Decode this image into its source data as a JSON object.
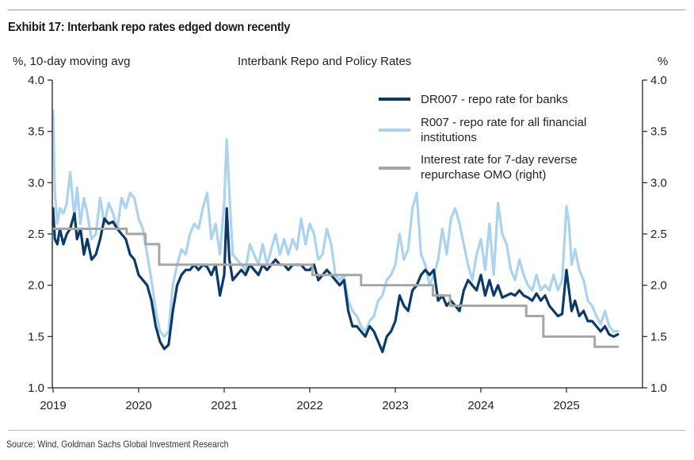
{
  "exhibit": {
    "title": "Exhibit 17: Interbank repo rates edged down recently",
    "source": "Source: Wind, Goldman Sachs Global Investment Research"
  },
  "chart_data": {
    "type": "line",
    "title": "Interbank Repo and Policy Rates",
    "left_axis_label": "%, 10-day moving avg",
    "right_axis_label": "%",
    "ylim": [
      1.0,
      4.0
    ],
    "yticks": [
      1.0,
      1.5,
      2.0,
      2.5,
      3.0,
      3.5,
      4.0
    ],
    "ytick_labels": [
      "1.0",
      "1.5",
      "2.0",
      "2.5",
      "3.0",
      "3.5",
      "4.0"
    ],
    "xlim": [
      2019.0,
      2026.3
    ],
    "xticks": [
      2019,
      2020,
      2021,
      2022,
      2023,
      2024,
      2025
    ],
    "xtick_labels": [
      "2019",
      "2020",
      "2021",
      "2022",
      "2023",
      "2024",
      "2025"
    ],
    "grid": false,
    "legend_position": "top-right",
    "series": [
      {
        "name": "R007 - repo rate for all financial institutions",
        "legend_lines": [
          "R007 - repo rate for all financial",
          "institutions"
        ],
        "color": "#a9d3ef",
        "axis": "left",
        "x": [
          2019.0,
          2019.02,
          2019.05,
          2019.08,
          2019.12,
          2019.16,
          2019.2,
          2019.25,
          2019.28,
          2019.32,
          2019.36,
          2019.4,
          2019.45,
          2019.5,
          2019.55,
          2019.6,
          2019.65,
          2019.7,
          2019.75,
          2019.8,
          2019.85,
          2019.9,
          2019.95,
          2020.0,
          2020.05,
          2020.1,
          2020.15,
          2020.2,
          2020.25,
          2020.3,
          2020.35,
          2020.4,
          2020.45,
          2020.5,
          2020.55,
          2020.6,
          2020.65,
          2020.7,
          2020.75,
          2020.8,
          2020.85,
          2020.9,
          2020.95,
          2021.0,
          2021.03,
          2021.06,
          2021.1,
          2021.15,
          2021.2,
          2021.25,
          2021.3,
          2021.35,
          2021.4,
          2021.45,
          2021.5,
          2021.55,
          2021.6,
          2021.65,
          2021.7,
          2021.75,
          2021.8,
          2021.85,
          2021.9,
          2021.95,
          2022.0,
          2022.05,
          2022.1,
          2022.15,
          2022.2,
          2022.25,
          2022.3,
          2022.35,
          2022.4,
          2022.45,
          2022.5,
          2022.55,
          2022.6,
          2022.65,
          2022.7,
          2022.75,
          2022.8,
          2022.85,
          2022.9,
          2022.95,
          2023.0,
          2023.05,
          2023.1,
          2023.15,
          2023.2,
          2023.25,
          2023.3,
          2023.35,
          2023.4,
          2023.45,
          2023.5,
          2023.55,
          2023.6,
          2023.65,
          2023.7,
          2023.75,
          2023.8,
          2023.85,
          2023.9,
          2023.95,
          2024.0,
          2024.05,
          2024.1,
          2024.15,
          2024.2,
          2024.25,
          2024.3,
          2024.35,
          2024.4,
          2024.45,
          2024.5,
          2024.55,
          2024.6,
          2024.65,
          2024.7,
          2024.75,
          2024.8,
          2024.85,
          2024.9,
          2024.95,
          2025.0,
          2025.03,
          2025.06,
          2025.1,
          2025.15,
          2025.2,
          2025.25,
          2025.3,
          2025.35,
          2025.4,
          2025.45,
          2025.5,
          2025.55,
          2025.6
        ],
        "values": [
          3.7,
          2.9,
          2.6,
          2.75,
          2.7,
          2.8,
          3.1,
          2.65,
          2.95,
          2.6,
          2.85,
          2.7,
          2.45,
          2.5,
          2.85,
          2.6,
          2.8,
          2.7,
          2.55,
          2.85,
          2.75,
          2.9,
          2.85,
          2.65,
          2.55,
          2.3,
          2.05,
          1.75,
          1.55,
          1.5,
          1.55,
          2.0,
          2.2,
          2.35,
          2.3,
          2.5,
          2.6,
          2.55,
          2.75,
          2.9,
          2.45,
          2.6,
          2.3,
          2.8,
          3.42,
          2.9,
          2.3,
          2.25,
          2.2,
          2.15,
          2.4,
          2.3,
          2.2,
          2.4,
          2.2,
          2.35,
          2.5,
          2.3,
          2.45,
          2.3,
          2.45,
          2.35,
          2.65,
          2.4,
          2.6,
          2.5,
          2.25,
          2.3,
          2.55,
          2.4,
          2.1,
          2.05,
          2.1,
          1.85,
          1.75,
          1.7,
          1.6,
          1.55,
          1.65,
          1.7,
          1.85,
          1.9,
          2.05,
          2.1,
          2.2,
          2.5,
          2.25,
          2.35,
          2.75,
          2.9,
          2.3,
          2.2,
          2.0,
          2.1,
          2.25,
          2.55,
          2.3,
          2.65,
          2.75,
          2.6,
          2.4,
          2.2,
          2.05,
          2.3,
          2.45,
          2.15,
          2.6,
          2.1,
          2.8,
          2.5,
          2.4,
          2.15,
          2.05,
          2.25,
          2.1,
          2.0,
          1.95,
          2.1,
          1.95,
          2.0,
          1.95,
          2.1,
          1.95,
          2.05,
          2.77,
          2.6,
          2.2,
          2.35,
          2.15,
          2.05,
          1.85,
          1.8,
          1.7,
          1.62,
          1.75,
          1.6,
          1.55,
          1.55
        ]
      },
      {
        "name": "DR007 - repo rate for banks",
        "legend_lines": [
          "DR007 - repo rate for banks"
        ],
        "color": "#0b3a66",
        "axis": "left",
        "x": [
          2019.0,
          2019.02,
          2019.05,
          2019.08,
          2019.12,
          2019.16,
          2019.2,
          2019.25,
          2019.28,
          2019.32,
          2019.36,
          2019.4,
          2019.45,
          2019.5,
          2019.55,
          2019.6,
          2019.65,
          2019.7,
          2019.75,
          2019.8,
          2019.85,
          2019.9,
          2019.95,
          2020.0,
          2020.05,
          2020.1,
          2020.15,
          2020.2,
          2020.25,
          2020.3,
          2020.35,
          2020.4,
          2020.45,
          2020.5,
          2020.55,
          2020.6,
          2020.65,
          2020.7,
          2020.75,
          2020.8,
          2020.85,
          2020.9,
          2020.95,
          2021.0,
          2021.03,
          2021.06,
          2021.1,
          2021.15,
          2021.2,
          2021.25,
          2021.3,
          2021.35,
          2021.4,
          2021.45,
          2021.5,
          2021.55,
          2021.6,
          2021.65,
          2021.7,
          2021.75,
          2021.8,
          2021.85,
          2021.9,
          2021.95,
          2022.0,
          2022.05,
          2022.1,
          2022.15,
          2022.2,
          2022.25,
          2022.3,
          2022.35,
          2022.4,
          2022.45,
          2022.5,
          2022.55,
          2022.6,
          2022.65,
          2022.7,
          2022.75,
          2022.8,
          2022.85,
          2022.9,
          2022.95,
          2023.0,
          2023.05,
          2023.1,
          2023.15,
          2023.2,
          2023.25,
          2023.3,
          2023.35,
          2023.4,
          2023.45,
          2023.5,
          2023.55,
          2023.6,
          2023.65,
          2023.7,
          2023.75,
          2023.8,
          2023.85,
          2023.9,
          2023.95,
          2024.0,
          2024.05,
          2024.1,
          2024.15,
          2024.2,
          2024.25,
          2024.3,
          2024.35,
          2024.4,
          2024.45,
          2024.5,
          2024.55,
          2024.6,
          2024.65,
          2024.7,
          2024.75,
          2024.8,
          2024.85,
          2024.9,
          2024.95,
          2025.0,
          2025.03,
          2025.06,
          2025.1,
          2025.15,
          2025.2,
          2025.25,
          2025.3,
          2025.35,
          2025.4,
          2025.45,
          2025.5,
          2025.55,
          2025.6
        ],
        "values": [
          2.75,
          2.45,
          2.4,
          2.55,
          2.4,
          2.5,
          2.55,
          2.7,
          2.45,
          2.55,
          2.3,
          2.45,
          2.25,
          2.3,
          2.45,
          2.65,
          2.6,
          2.62,
          2.55,
          2.5,
          2.45,
          2.3,
          2.25,
          2.1,
          2.05,
          2.0,
          1.85,
          1.6,
          1.45,
          1.38,
          1.42,
          1.75,
          2.0,
          2.1,
          2.15,
          2.15,
          2.2,
          2.15,
          2.2,
          2.18,
          2.1,
          2.2,
          1.9,
          2.1,
          2.75,
          2.25,
          2.05,
          2.1,
          2.15,
          2.1,
          2.2,
          2.15,
          2.1,
          2.2,
          2.15,
          2.2,
          2.25,
          2.2,
          2.2,
          2.15,
          2.2,
          2.2,
          2.2,
          2.15,
          2.15,
          2.2,
          2.05,
          2.1,
          2.15,
          2.1,
          2.05,
          2.0,
          2.05,
          1.75,
          1.6,
          1.6,
          1.55,
          1.5,
          1.6,
          1.55,
          1.45,
          1.35,
          1.5,
          1.55,
          1.65,
          1.9,
          1.8,
          1.75,
          1.95,
          2.0,
          2.1,
          2.15,
          2.1,
          2.15,
          1.85,
          1.9,
          1.8,
          1.85,
          1.8,
          1.75,
          1.95,
          2.05,
          2.0,
          1.95,
          2.1,
          1.9,
          2.05,
          1.9,
          2.0,
          1.88,
          1.9,
          1.92,
          1.9,
          1.95,
          1.9,
          1.88,
          1.85,
          1.92,
          1.85,
          1.9,
          1.8,
          1.75,
          1.7,
          1.72,
          2.15,
          1.95,
          1.75,
          1.85,
          1.7,
          1.75,
          1.65,
          1.65,
          1.6,
          1.55,
          1.6,
          1.52,
          1.5,
          1.52
        ]
      },
      {
        "name": "Interest rate for 7-day reverse repurchase OMO (right)",
        "legend_lines": [
          "Interest rate for 7-day reverse",
          "repurchase OMO (right)"
        ],
        "color": "#a6a6a6",
        "axis": "right",
        "step": true,
        "x": [
          2019.0,
          2019.86,
          2020.08,
          2020.24,
          2022.03,
          2022.6,
          2023.44,
          2023.64,
          2024.53,
          2024.73,
          2025.33,
          2025.6
        ],
        "values": [
          2.55,
          2.5,
          2.4,
          2.2,
          2.1,
          2.0,
          1.9,
          1.8,
          1.7,
          1.5,
          1.4,
          1.4
        ]
      }
    ]
  }
}
